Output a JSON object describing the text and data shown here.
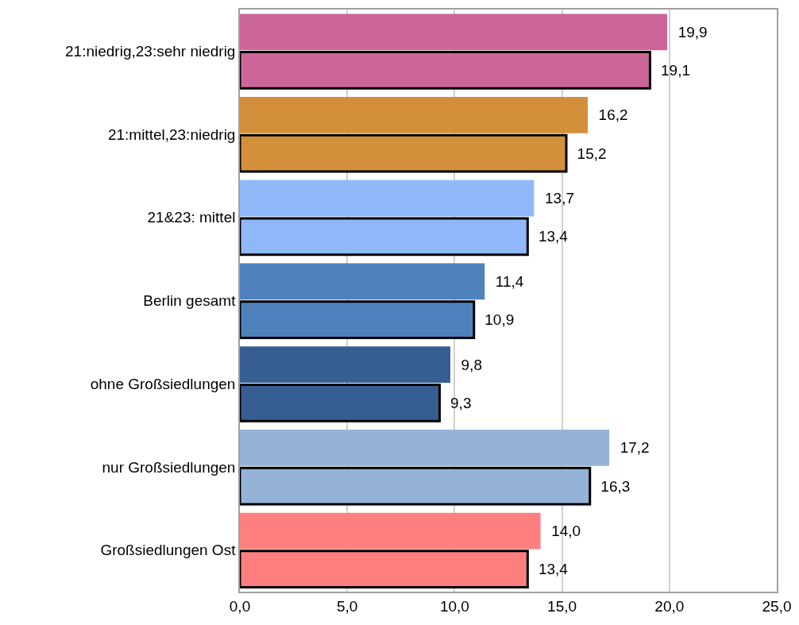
{
  "chart_data": {
    "type": "bar",
    "orientation": "horizontal",
    "categories": [
      "21:niedrig,23:sehr niedrig",
      "21:mittel,23:niedrig",
      "21&23: mittel",
      "Berlin gesamt",
      "ohne Großsiedlungen",
      "nur Großsiedlungen",
      "Großsiedlungen Ost"
    ],
    "series": [
      {
        "colors": [
          "#cc6699",
          "#d38f3a",
          "#8fb8f8",
          "#4f81bd",
          "#375e92",
          "#95b3d7",
          "#ff7f7f"
        ],
        "values": [
          19.9,
          16.2,
          13.7,
          11.4,
          9.8,
          17.2,
          14.0
        ],
        "value_labels": [
          "19,9",
          "16,2",
          "13,7",
          "11,4",
          "9,8",
          "17,2",
          "14,0"
        ]
      },
      {
        "colors": [
          "#cc6699",
          "#d38f3a",
          "#8fb8f8",
          "#4f81bd",
          "#375e92",
          "#95b3d7",
          "#ff7f7f"
        ],
        "values": [
          19.1,
          15.2,
          13.4,
          10.9,
          9.3,
          16.3,
          13.4
        ],
        "value_labels": [
          "19,1",
          "15,2",
          "13,4",
          "10,9",
          "9,3",
          "16,3",
          "13,4"
        ]
      }
    ],
    "xlim": [
      0,
      25
    ],
    "xticks": [
      {
        "value": 0,
        "label": "0,0"
      },
      {
        "value": 5,
        "label": "5,0"
      },
      {
        "value": 10,
        "label": "10,0"
      },
      {
        "value": 15,
        "label": "15,0"
      },
      {
        "value": 20,
        "label": "20,0"
      },
      {
        "value": 25,
        "label": "25,0"
      }
    ],
    "grid": "x"
  }
}
